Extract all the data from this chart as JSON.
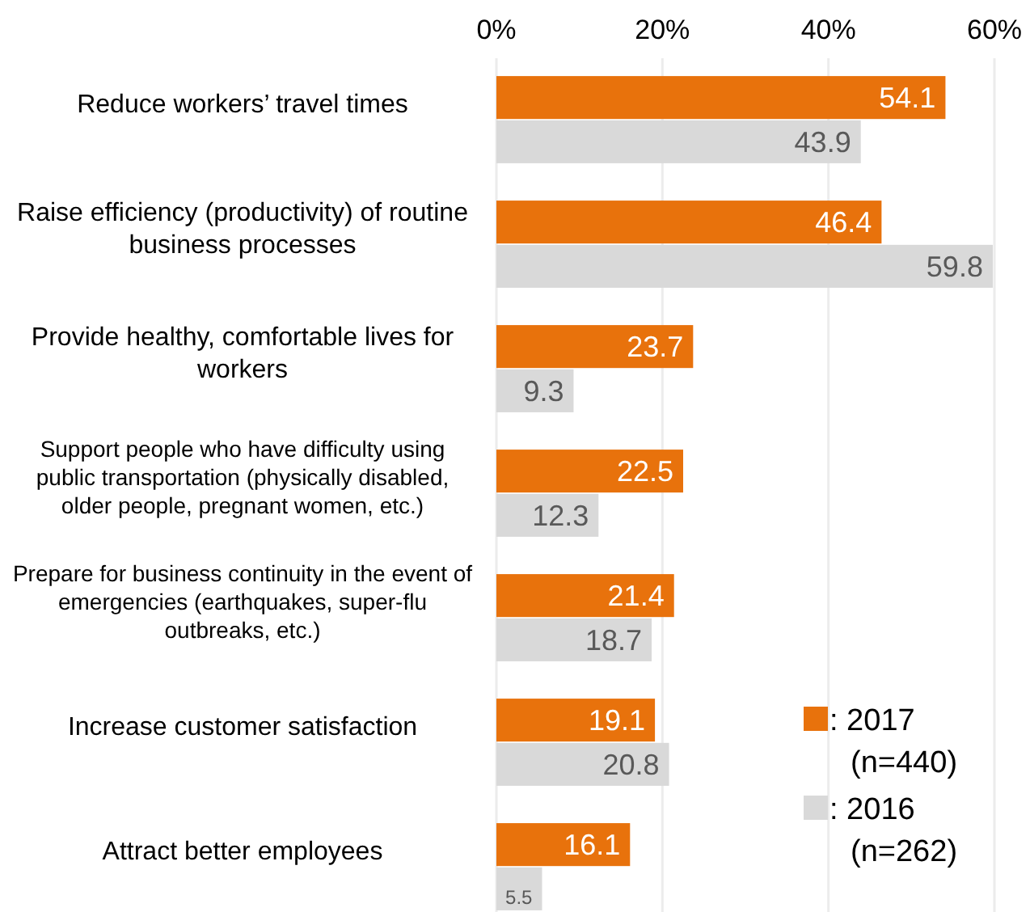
{
  "chart_data": {
    "type": "bar",
    "orientation": "horizontal",
    "categories": [
      "Reduce workers’ travel times",
      "Raise efficiency (productivity) of routine business processes",
      "Provide healthy, comfortable lives for workers",
      "Support people who have difficulty using public transportation (physically disabled, older people, pregnant women, etc.)",
      "Prepare for business continuity in the event of emergencies (earthquakes, super-flu outbreaks, etc.)",
      "Increase customer satisfaction",
      "Attract better employees"
    ],
    "series": [
      {
        "name": ": 2017 (n=440)",
        "color": "#e8720c",
        "values": [
          54.1,
          46.4,
          23.7,
          22.5,
          21.4,
          19.1,
          16.1
        ]
      },
      {
        "name": ": 2016 (n=262)",
        "color": "#d9d9d9",
        "values": [
          43.9,
          59.8,
          9.3,
          12.3,
          18.7,
          20.8,
          5.5
        ]
      }
    ],
    "xlim": [
      0,
      60
    ],
    "xticks": [
      {
        "value": 0,
        "label": "0%"
      },
      {
        "value": 20,
        "label": "20%"
      },
      {
        "value": 40,
        "label": "40%"
      },
      {
        "value": 60,
        "label": "60%"
      }
    ],
    "grid": "x",
    "legend": "bottom right",
    "data_labels": true
  }
}
